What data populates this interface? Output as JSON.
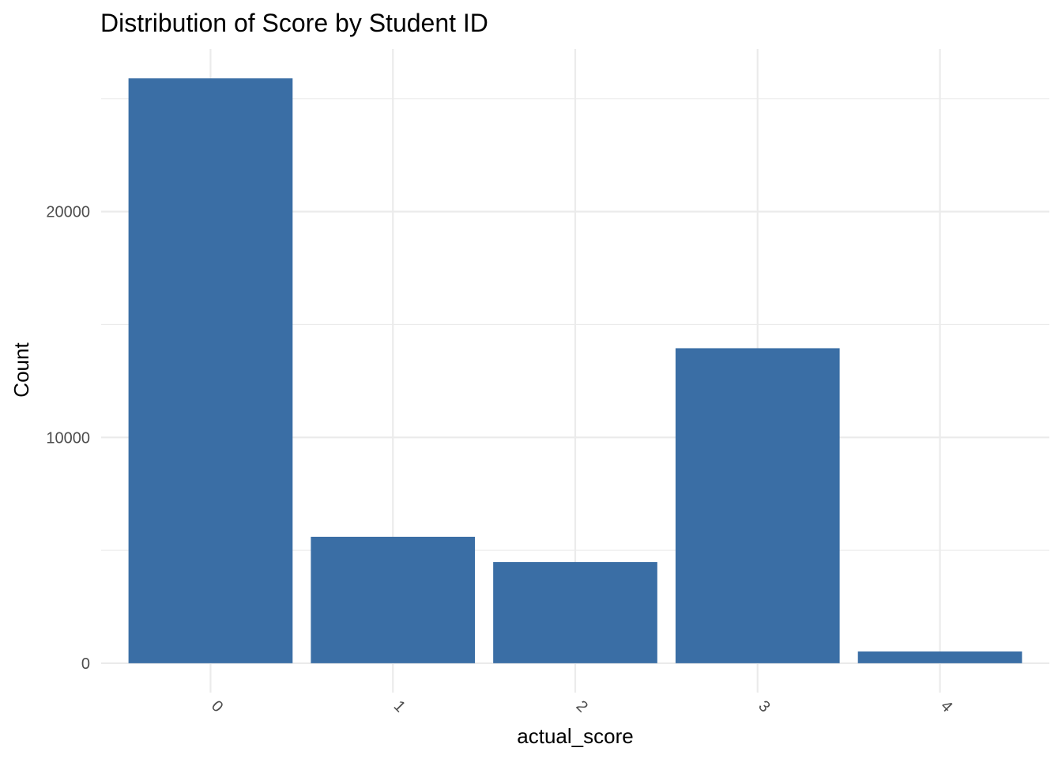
{
  "chart_data": {
    "type": "bar",
    "title": "Distribution of Score by Student ID",
    "xlabel": "actual_score",
    "ylabel": "Count",
    "categories": [
      "0",
      "1",
      "2",
      "3",
      "4"
    ],
    "values": [
      25900,
      5600,
      4480,
      13950,
      520
    ],
    "y_ticks": [
      0,
      10000,
      20000
    ],
    "y_tick_labels": [
      "0",
      "10000",
      "20000"
    ],
    "ylim": [
      -1300,
      27200
    ],
    "grid": true,
    "bar_color": "#3a6ea5",
    "x_tick_rotation": 45
  }
}
